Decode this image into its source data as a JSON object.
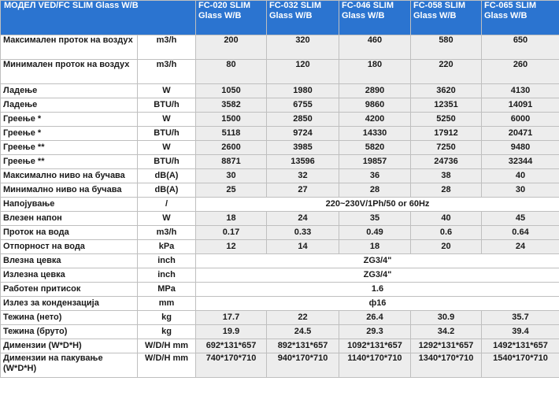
{
  "header": {
    "model": "МОДЕЛ VED/FC SLIM Glass W/B",
    "models": [
      "FC-020 SLIM Glass W/B",
      "FC-032 SLIM Glass W/B",
      "FC-046 SLIM Glass W/B",
      "FC-058 SLIM Glass W/B",
      "FC-065 SLIM Glass W/B"
    ]
  },
  "rows": [
    {
      "param": "Максимален проток на воздух",
      "unit": "m3/h",
      "values": [
        "200",
        "320",
        "460",
        "580",
        "650"
      ]
    },
    {
      "param": "Минимален проток на воздух",
      "unit": "m3/h",
      "values": [
        "80",
        "120",
        "180",
        "220",
        "260"
      ]
    },
    {
      "param": "Ладење",
      "unit": "W",
      "values": [
        "1050",
        "1980",
        "2890",
        "3620",
        "4130"
      ]
    },
    {
      "param": "Ладење",
      "unit": "BTU/h",
      "values": [
        "3582",
        "6755",
        "9860",
        "12351",
        "14091"
      ]
    },
    {
      "param": "Греење *",
      "unit": "W",
      "values": [
        "1500",
        "2850",
        "4200",
        "5250",
        "6000"
      ]
    },
    {
      "param": "Греење *",
      "unit": "BTU/h",
      "values": [
        "5118",
        "9724",
        "14330",
        "17912",
        "20471"
      ]
    },
    {
      "param": "Греење **",
      "unit": "W",
      "values": [
        "2600",
        "3985",
        "5820",
        "7250",
        "9480"
      ]
    },
    {
      "param": "Греење **",
      "unit": "BTU/h",
      "values": [
        "8871",
        "13596",
        "19857",
        "24736",
        "32344"
      ]
    },
    {
      "param": "Максимално ниво на бучава",
      "unit": "dB(A)",
      "values": [
        "30",
        "32",
        "36",
        "38",
        "40"
      ]
    },
    {
      "param": "Минимално ниво на бучава",
      "unit": "dB(A)",
      "values": [
        "25",
        "27",
        "28",
        "28",
        "30"
      ]
    },
    {
      "param": "Напојување",
      "unit": "/",
      "merged": "220~230V/1Ph/50 or 60Hz"
    },
    {
      "param": "Влезен напон",
      "unit": "W",
      "values": [
        "18",
        "24",
        "35",
        "40",
        "45"
      ]
    },
    {
      "param": "Проток на вода",
      "unit": "m3/h",
      "values": [
        "0.17",
        "0.33",
        "0.49",
        "0.6",
        "0.64"
      ]
    },
    {
      "param": "Отпорност на вода",
      "unit": "kPa",
      "values": [
        "12",
        "14",
        "18",
        "20",
        "24"
      ]
    },
    {
      "param": "Влезна цевка",
      "unit": "inch",
      "merged": "ZG3/4\""
    },
    {
      "param": "Излезна цевка",
      "unit": "inch",
      "merged": "ZG3/4\""
    },
    {
      "param": "Работен притисок",
      "unit": "MPa",
      "merged": "1.6"
    },
    {
      "param": "Излез за кондензација",
      "unit": "mm",
      "merged": "ф16"
    },
    {
      "param": "Тежина (нето)",
      "unit": "kg",
      "values": [
        "17.7",
        "22",
        "26.4",
        "30.9",
        "35.7"
      ]
    },
    {
      "param": "Тежина (бруто)",
      "unit": "kg",
      "values": [
        "19.9",
        "24.5",
        "29.3",
        "34.2",
        "39.4"
      ]
    },
    {
      "param": "Димензии (W*D*H)",
      "unit": "W/D/H mm",
      "values": [
        "692*131*657",
        "892*131*657",
        "1092*131*657",
        "1292*131*657",
        "1492*131*657"
      ]
    },
    {
      "param": "Димензии на пакување (W*D*H)",
      "unit": "W/D/H mm",
      "values": [
        "740*170*710",
        "940*170*710",
        "1140*170*710",
        "1340*170*710",
        "1540*170*710"
      ]
    }
  ]
}
